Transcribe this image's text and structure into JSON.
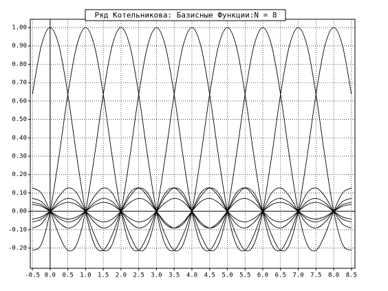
{
  "chart_data": {
    "type": "line",
    "title": "Ряд Котельникова: Базисные Функции:N = 8",
    "x": [
      -0.5,
      -0.25,
      0,
      0.25,
      0.5,
      0.75,
      1,
      1.25,
      1.5,
      1.75,
      2,
      2.25,
      2.5,
      2.75,
      3,
      3.25,
      3.5,
      3.75,
      4,
      4.25,
      4.5,
      4.75,
      5,
      5.25,
      5.5,
      5.75,
      6,
      6.25,
      6.5,
      6.75,
      7,
      7.25,
      7.5,
      7.75,
      8,
      8.25,
      8.5
    ],
    "series": [
      {
        "color": "#000000",
        "values": [
          0.6366,
          0.9003,
          1,
          0.9003,
          0.6366,
          0.3001,
          0,
          -0.1801,
          -0.2122,
          -0.1286,
          0,
          0.1,
          0.1273,
          0.0818,
          0,
          -0.0693,
          -0.0909,
          -0.06,
          0,
          0.053,
          0.0707,
          0.0474,
          0,
          -0.0429,
          -0.0579,
          -0.0391,
          0,
          0.036,
          0.049,
          0.0333,
          0,
          -0.031,
          -0.0424,
          -0.029,
          0,
          0.0273,
          0.0374
        ]
      },
      {
        "color": "#000000",
        "values": [
          -0.2122,
          -0.1801,
          0,
          0.3001,
          0.6366,
          0.9003,
          1,
          0.9003,
          0.6366,
          0.3001,
          0,
          -0.1801,
          -0.2122,
          -0.1286,
          0,
          0.1,
          0.1273,
          0.0818,
          0,
          -0.0693,
          -0.0909,
          -0.06,
          0,
          0.053,
          0.0707,
          0.0474,
          0,
          -0.0429,
          -0.0579,
          -0.0391,
          0,
          0.036,
          0.049,
          0.0333,
          0,
          -0.031,
          -0.0424
        ]
      },
      {
        "color": "#000000",
        "values": [
          0.1273,
          0.1,
          0,
          -0.1286,
          -0.2122,
          -0.1801,
          0,
          0.3001,
          0.6366,
          0.9003,
          1,
          0.9003,
          0.6366,
          0.3001,
          0,
          -0.1801,
          -0.2122,
          -0.1286,
          0,
          0.1,
          0.1273,
          0.0818,
          0,
          -0.0693,
          -0.0909,
          -0.06,
          0,
          0.053,
          0.0707,
          0.0474,
          0,
          -0.0429,
          -0.0579,
          -0.0391,
          0,
          0.036,
          0.049
        ]
      },
      {
        "color": "#000000",
        "values": [
          -0.0909,
          -0.0693,
          0,
          0.0818,
          0.1273,
          0.1,
          0,
          -0.1286,
          -0.2122,
          -0.1801,
          0,
          0.3001,
          0.6366,
          0.9003,
          1,
          0.9003,
          0.6366,
          0.3001,
          0,
          -0.1801,
          -0.2122,
          -0.1286,
          0,
          0.1,
          0.1273,
          0.0818,
          0,
          -0.0693,
          -0.0909,
          -0.06,
          0,
          0.053,
          0.0707,
          0.0474,
          0,
          -0.0429,
          -0.0579
        ]
      },
      {
        "color": "#000000",
        "values": [
          0.0707,
          0.053,
          0,
          -0.06,
          -0.0909,
          -0.0693,
          0,
          0.0818,
          0.1273,
          0.1,
          0,
          -0.1286,
          -0.2122,
          -0.1801,
          0,
          0.3001,
          0.6366,
          0.9003,
          1,
          0.9003,
          0.6366,
          0.3001,
          0,
          -0.1801,
          -0.2122,
          -0.1286,
          0,
          0.1,
          0.1273,
          0.0818,
          0,
          -0.0693,
          -0.0909,
          -0.06,
          0,
          0.053,
          0.0707
        ]
      },
      {
        "color": "#000000",
        "values": [
          -0.0579,
          -0.0429,
          0,
          0.0474,
          0.0707,
          0.053,
          0,
          -0.06,
          -0.0909,
          -0.0693,
          0,
          0.0818,
          0.1273,
          0.1,
          0,
          -0.1286,
          -0.2122,
          -0.1801,
          0,
          0.3001,
          0.6366,
          0.9003,
          1,
          0.9003,
          0.6366,
          0.3001,
          0,
          -0.1801,
          -0.2122,
          -0.1286,
          0,
          0.1,
          0.1273,
          0.0818,
          0,
          -0.0693,
          -0.0909
        ]
      },
      {
        "color": "#000000",
        "values": [
          0.049,
          0.036,
          0,
          -0.0391,
          -0.0579,
          -0.0429,
          0,
          0.0474,
          0.0707,
          0.053,
          0,
          -0.06,
          -0.0909,
          -0.0693,
          0,
          0.0818,
          0.1273,
          0.1,
          0,
          -0.1286,
          -0.2122,
          -0.1801,
          0,
          0.3001,
          0.6366,
          0.9003,
          1,
          0.9003,
          0.6366,
          0.3001,
          0,
          -0.1801,
          -0.2122,
          -0.1286,
          0,
          0.1,
          0.1273
        ]
      },
      {
        "color": "#000000",
        "values": [
          -0.0424,
          -0.031,
          0,
          0.0333,
          0.049,
          0.036,
          0,
          -0.0391,
          -0.0579,
          -0.0429,
          0,
          0.0474,
          0.0707,
          0.053,
          0,
          -0.06,
          -0.0909,
          -0.0693,
          0,
          0.0818,
          0.1273,
          0.1,
          0,
          -0.1286,
          -0.2122,
          -0.1801,
          0,
          0.3001,
          0.6366,
          0.9003,
          1,
          0.9003,
          0.6366,
          0.3001,
          0,
          -0.1801,
          -0.2122
        ]
      },
      {
        "color": "#000000",
        "values": [
          0.0374,
          0.0273,
          0,
          -0.029,
          -0.0424,
          -0.031,
          0,
          0.0333,
          0.049,
          0.036,
          0,
          -0.0391,
          -0.0579,
          -0.0429,
          0,
          0.0474,
          0.0707,
          0.053,
          0,
          -0.06,
          -0.0909,
          -0.0693,
          0,
          0.0818,
          0.1273,
          0.1,
          0,
          -0.1286,
          -0.2122,
          -0.1801,
          0,
          0.3001,
          0.6366,
          0.9003,
          1,
          0.9003,
          0.6366
        ]
      }
    ],
    "xlim": [
      -0.56,
      8.6
    ],
    "ylim": [
      -0.31,
      1.045
    ],
    "xticks": [
      {
        "value": -0.5,
        "label": "-0.5"
      },
      {
        "value": 0,
        "label": "0.0"
      },
      0.5,
      {
        "value": 1,
        "label": "1.0"
      },
      1.5,
      {
        "value": 2,
        "label": "2.0"
      },
      2.5,
      {
        "value": 3,
        "label": "3.0"
      },
      3.5,
      {
        "value": 4,
        "label": "4.0"
      },
      4.5,
      {
        "value": 5,
        "label": "5.0"
      },
      5.5,
      {
        "value": 6,
        "label": "6.0"
      },
      6.5,
      {
        "value": 7,
        "label": "7.0"
      },
      7.5,
      {
        "value": 8,
        "label": "8.0"
      },
      8.5
    ],
    "yticks": [
      {
        "value": -0.2,
        "label": "-0.20"
      },
      {
        "value": -0.1,
        "label": "-0.10"
      },
      {
        "value": 0,
        "label": "0.00"
      },
      {
        "value": 0.1,
        "label": "0.10"
      },
      {
        "value": 0.2,
        "label": "0.20"
      },
      {
        "value": 0.3,
        "label": "0.30"
      },
      {
        "value": 0.4,
        "label": "0.40"
      },
      {
        "value": 0.5,
        "label": "0.50"
      },
      {
        "value": 0.6,
        "label": "0.60"
      },
      {
        "value": 0.7,
        "label": "0.70"
      },
      {
        "value": 0.8,
        "label": "0.80"
      },
      {
        "value": 0.9,
        "label": "0.90"
      },
      {
        "value": 1,
        "label": "1.00"
      }
    ],
    "grid": true
  }
}
